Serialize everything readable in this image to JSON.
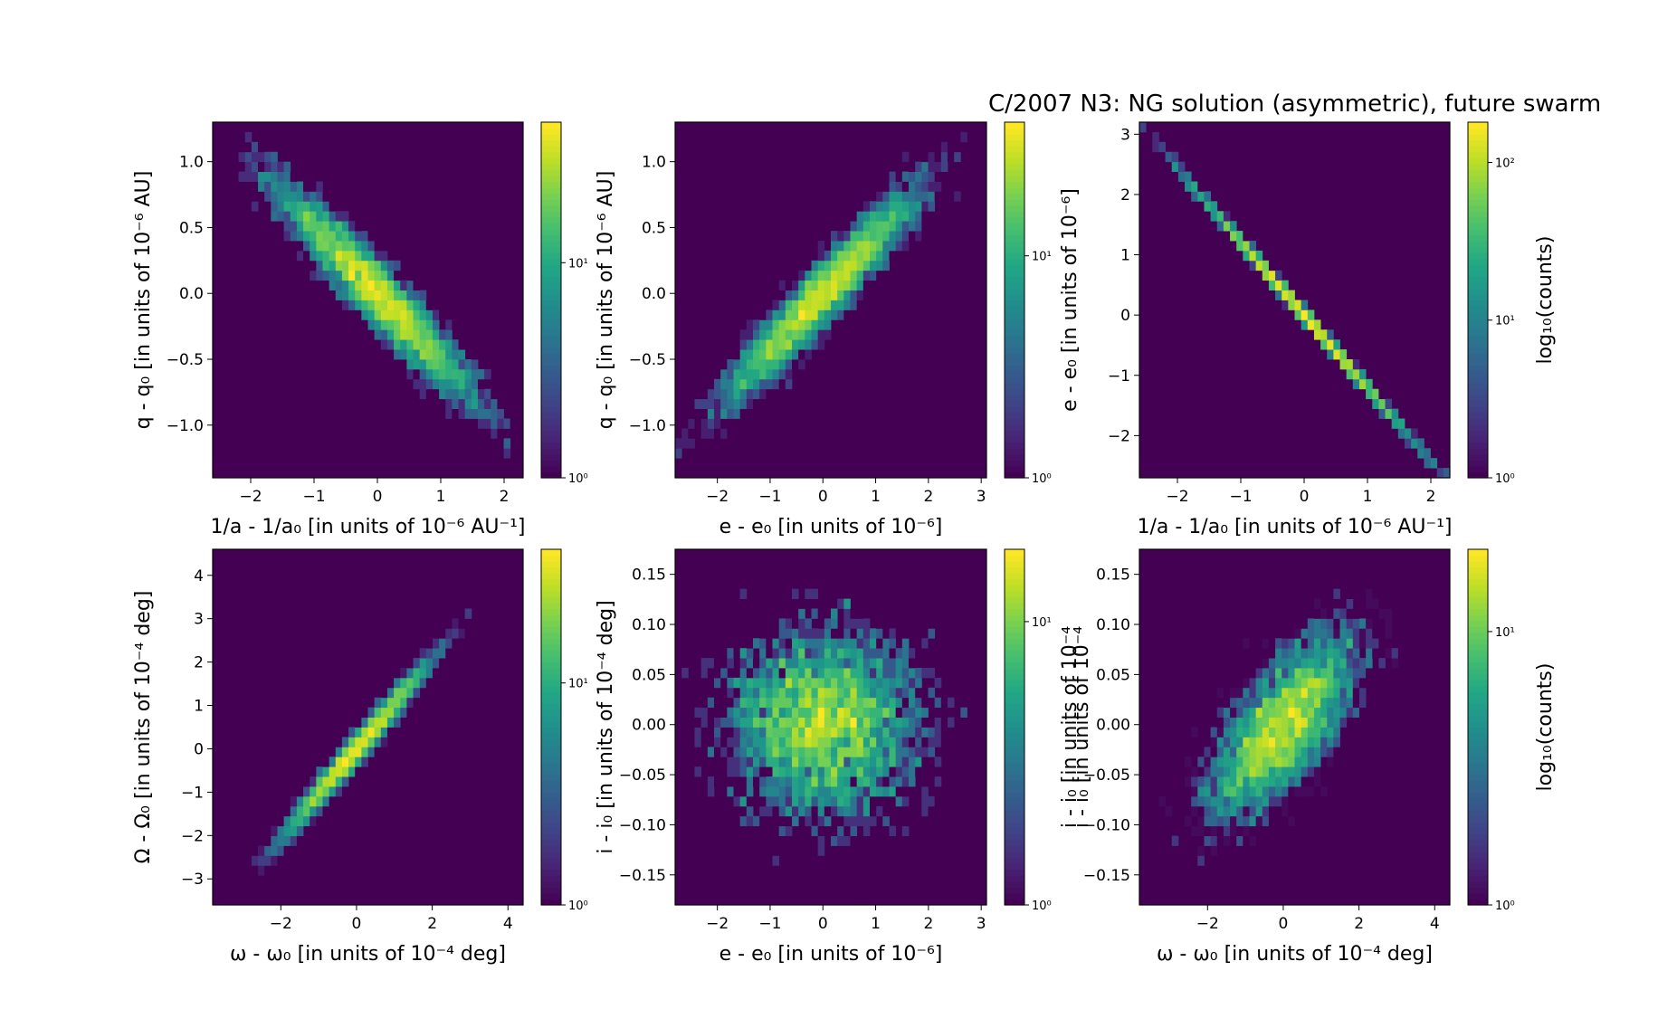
{
  "figure_title": "C/2007 N3:  NG solution (asymmetric), future swarm",
  "colormap": "viridis",
  "plot_background": "#440154",
  "chart_data": [
    {
      "type": "heatmap",
      "xlabel": "1/a - 1/a0 [in units of 10^-6 AU^-1]",
      "ylabel": "q - q0 [in units of 10^-6 AU]",
      "xlim": [
        -2.6,
        2.3
      ],
      "ylim": [
        -1.4,
        1.3
      ],
      "xticks": [
        -2,
        -1,
        0,
        1,
        2
      ],
      "yticks": [
        -1.0,
        -0.5,
        0.0,
        0.5,
        1.0
      ],
      "xtick_labels": [
        "−2",
        "−1",
        "0",
        "1",
        "2"
      ],
      "ytick_labels": [
        "−1.0",
        "−0.5",
        "0.0",
        "0.5",
        "1.0"
      ],
      "correlation": -0.95,
      "sx": 0.8,
      "sy": 0.42,
      "colorbar": {
        "scale": "log",
        "max": 45,
        "ticks": [
          1,
          10
        ],
        "tick_labels": [
          "10⁰",
          "10¹"
        ],
        "label": ""
      }
    },
    {
      "type": "heatmap",
      "xlabel": "e - e0 [in units of 10^-6]",
      "ylabel": "q - q0 [in units of 10^-6 AU]",
      "xlim": [
        -2.8,
        3.1
      ],
      "ylim": [
        -1.4,
        1.3
      ],
      "xticks": [
        -2,
        -1,
        0,
        1,
        2,
        3
      ],
      "yticks": [
        -1.0,
        -0.5,
        0.0,
        0.5,
        1.0
      ],
      "xtick_labels": [
        "−2",
        "−1",
        "0",
        "1",
        "2",
        "3"
      ],
      "ytick_labels": [
        "−1.0",
        "−0.5",
        "0.0",
        "0.5",
        "1.0"
      ],
      "correlation": 0.95,
      "sx": 0.95,
      "sy": 0.42,
      "colorbar": {
        "scale": "log",
        "max": 40,
        "ticks": [
          1,
          10
        ],
        "tick_labels": [
          "10⁰",
          "10¹"
        ],
        "label": ""
      }
    },
    {
      "type": "heatmap",
      "xlabel": "1/a - 1/a0 [in units of 10^-6 AU^-1]",
      "ylabel": "e - e0 [in units of 10^-6]",
      "xlim": [
        -2.6,
        2.3
      ],
      "ylim": [
        -2.7,
        3.2
      ],
      "xticks": [
        -2,
        -1,
        0,
        1,
        2
      ],
      "yticks": [
        -2,
        -1,
        0,
        1,
        2,
        3
      ],
      "xtick_labels": [
        "−2",
        "−1",
        "0",
        "1",
        "2"
      ],
      "ytick_labels": [
        "−2",
        "−1",
        "0",
        "1",
        "2",
        "3"
      ],
      "correlation": -0.9995,
      "sx": 0.8,
      "sy": 0.97,
      "colorbar": {
        "scale": "log",
        "max": 180,
        "ticks": [
          1,
          10,
          100
        ],
        "tick_labels": [
          "10⁰",
          "10¹",
          "10²"
        ],
        "label": "log10(counts)"
      }
    },
    {
      "type": "heatmap",
      "xlabel": "ω - ω0 [in units of 10^-4 deg]",
      "ylabel": "Ω - Ω0 [in units of 10^-4 deg]",
      "xlim": [
        -3.8,
        4.4
      ],
      "ylim": [
        -3.6,
        4.6
      ],
      "xticks": [
        -2,
        0,
        2,
        4
      ],
      "yticks": [
        -3,
        -2,
        -1,
        0,
        1,
        2,
        3,
        4
      ],
      "xtick_labels": [
        "−2",
        "0",
        "2",
        "4"
      ],
      "ytick_labels": [
        "−3",
        "−2",
        "−1",
        "0",
        "1",
        "2",
        "3",
        "4"
      ],
      "correlation": 0.985,
      "sx": 1.05,
      "sy": 1.1,
      "colorbar": {
        "scale": "log",
        "max": 40,
        "ticks": [
          1,
          10
        ],
        "tick_labels": [
          "10⁰",
          "10¹"
        ],
        "label": ""
      }
    },
    {
      "type": "heatmap",
      "xlabel": "e - e0 [in units of 10^-6]",
      "ylabel": "i - i0 [in units of 10^-4 deg]",
      "xlim": [
        -2.8,
        3.1
      ],
      "ylim": [
        -0.18,
        0.175
      ],
      "xticks": [
        -2,
        -1,
        0,
        1,
        2,
        3
      ],
      "yticks": [
        -0.15,
        -0.1,
        -0.05,
        0.0,
        0.05,
        0.1,
        0.15
      ],
      "xtick_labels": [
        "−2",
        "−1",
        "0",
        "1",
        "2",
        "3"
      ],
      "ytick_labels": [
        "−0.15",
        "−0.10",
        "−0.05",
        "0.00",
        "0.05",
        "0.10",
        "0.15"
      ],
      "correlation": 0.0,
      "sx": 0.95,
      "sy": 0.05,
      "colorbar": {
        "scale": "log",
        "max": 18,
        "ticks": [
          1,
          10
        ],
        "tick_labels": [
          "10⁰",
          "10¹"
        ],
        "label": "i - i0 [in units of 10^-4"
      }
    },
    {
      "type": "heatmap",
      "xlabel": "ω - ω0 [in units of 10^-4 deg]",
      "ylabel": "i - i0 [in units of 10^-4",
      "xlim": [
        -3.8,
        4.4
      ],
      "ylim": [
        -0.18,
        0.175
      ],
      "xticks": [
        -2,
        0,
        2,
        4
      ],
      "yticks": [
        -0.15,
        -0.1,
        -0.05,
        0.0,
        0.05,
        0.1,
        0.15
      ],
      "xtick_labels": [
        "−2",
        "0",
        "2",
        "4"
      ],
      "ytick_labels": [
        "−0.15",
        "−0.10",
        "−0.05",
        "0.00",
        "0.05",
        "0.10",
        "0.15"
      ],
      "correlation": 0.7,
      "sx": 1.05,
      "sy": 0.05,
      "colorbar": {
        "scale": "log",
        "max": 20,
        "ticks": [
          1,
          10
        ],
        "tick_labels": [
          "10⁰",
          "10¹"
        ],
        "label": "log10(counts)"
      }
    }
  ]
}
